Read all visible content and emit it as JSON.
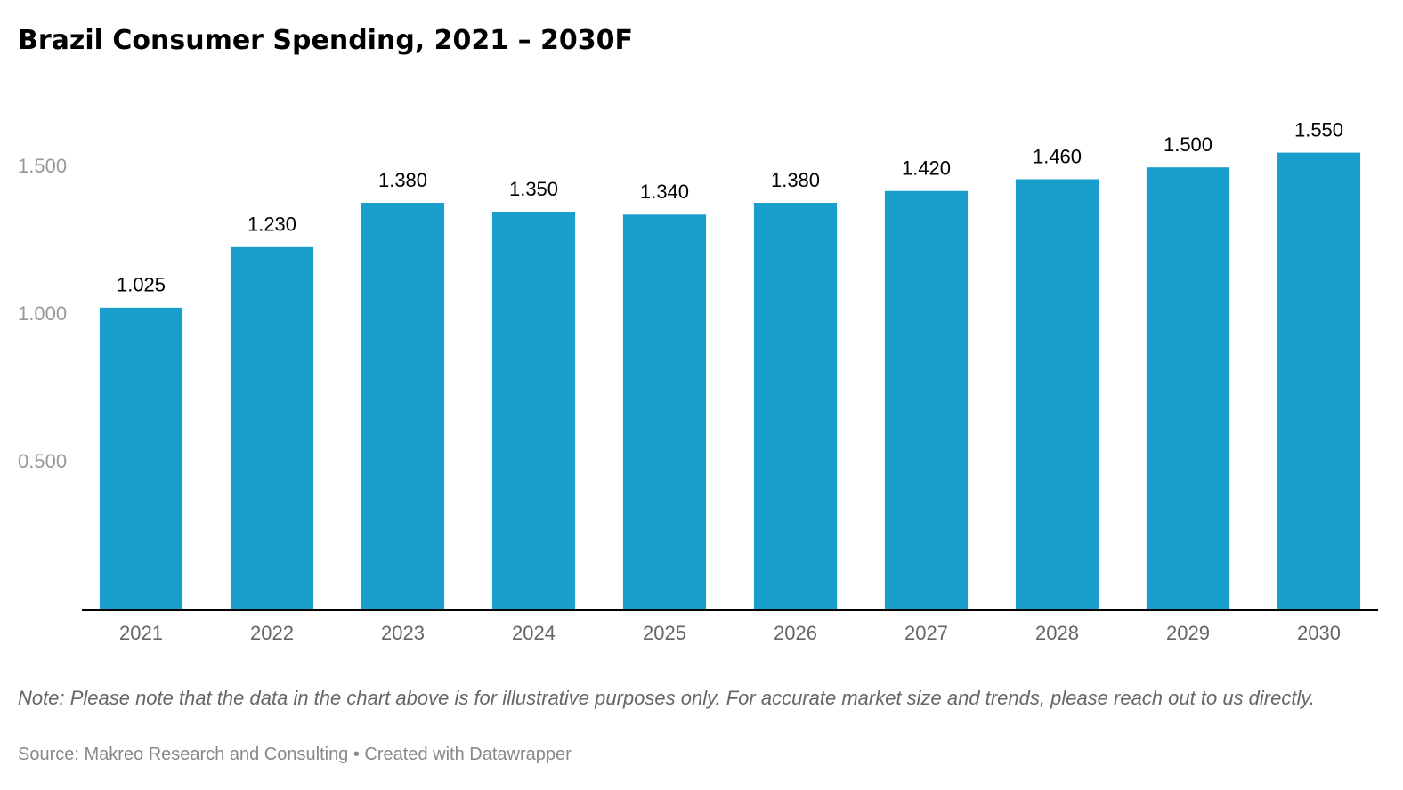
{
  "chart_data": {
    "type": "bar",
    "title": "Brazil Consumer Spending, 2021 – 2030F",
    "categories": [
      "2021",
      "2022",
      "2023",
      "2024",
      "2025",
      "2026",
      "2027",
      "2028",
      "2029",
      "2030"
    ],
    "values": [
      1.025,
      1.23,
      1.38,
      1.35,
      1.34,
      1.38,
      1.42,
      1.46,
      1.5,
      1.55
    ],
    "value_labels": [
      "1.025",
      "1.230",
      "1.380",
      "1.350",
      "1.340",
      "1.380",
      "1.420",
      "1.460",
      "1.500",
      "1.550"
    ],
    "color": "#1a9fcc",
    "ylim": [
      0,
      1.6
    ],
    "yticks": [
      {
        "value": 0.5,
        "label": "0.500"
      },
      {
        "value": 1,
        "label": "1.000"
      },
      {
        "value": 1.5,
        "label": "1.500"
      }
    ],
    "grid": false,
    "note": "Note: Please note that the data in the chart above is for illustrative purposes only. For accurate market size and trends, please reach out to us directly.",
    "source": "Source: Makreo Research and Consulting • Created with Datawrapper"
  }
}
